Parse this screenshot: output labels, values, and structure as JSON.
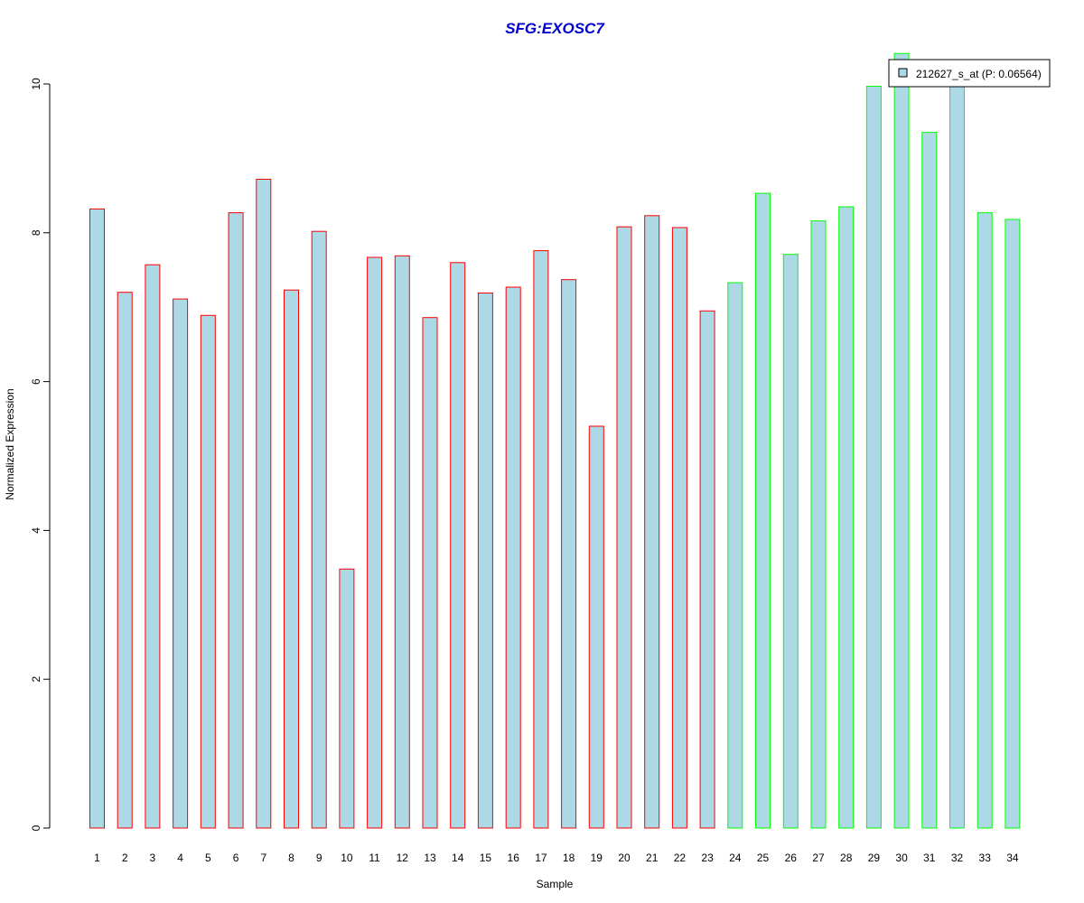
{
  "chart_data": {
    "type": "bar",
    "title": "SFG:EXOSC7",
    "xlabel": "Sample",
    "ylabel": "Normalized Expression",
    "ylim": [
      0,
      10.4
    ],
    "yticks": [
      0,
      2,
      4,
      6,
      8,
      10
    ],
    "categories": [
      "1",
      "2",
      "3",
      "4",
      "5",
      "6",
      "7",
      "8",
      "9",
      "10",
      "11",
      "12",
      "13",
      "14",
      "15",
      "16",
      "17",
      "18",
      "19",
      "20",
      "21",
      "22",
      "23",
      "24",
      "25",
      "26",
      "27",
      "28",
      "29",
      "30",
      "31",
      "32",
      "33",
      "34"
    ],
    "series": [
      {
        "name": "212627_s_at (P: 0.06564)",
        "values": [
          8.32,
          7.2,
          7.57,
          7.11,
          6.89,
          8.27,
          8.72,
          7.23,
          8.02,
          3.48,
          7.67,
          7.69,
          6.86,
          7.6,
          7.19,
          7.27,
          7.76,
          7.37,
          5.4,
          8.08,
          8.23,
          8.07,
          6.95,
          7.33,
          8.53,
          7.71,
          8.16,
          8.35,
          9.97,
          10.41,
          9.35,
          10.03,
          8.27,
          8.18
        ]
      }
    ],
    "groups": [
      1,
      1,
      1,
      1,
      1,
      1,
      1,
      1,
      1,
      1,
      1,
      1,
      1,
      1,
      1,
      1,
      1,
      1,
      1,
      1,
      1,
      1,
      1,
      2,
      2,
      2,
      2,
      2,
      2,
      2,
      2,
      2,
      2,
      2
    ],
    "colors": {
      "fill": "#add8e6",
      "group1_border": "#ff0000",
      "group2_border": "#00ff00",
      "title": "#0000cc",
      "axis": "#000000"
    },
    "legend_position": "top-right",
    "grid": false
  }
}
